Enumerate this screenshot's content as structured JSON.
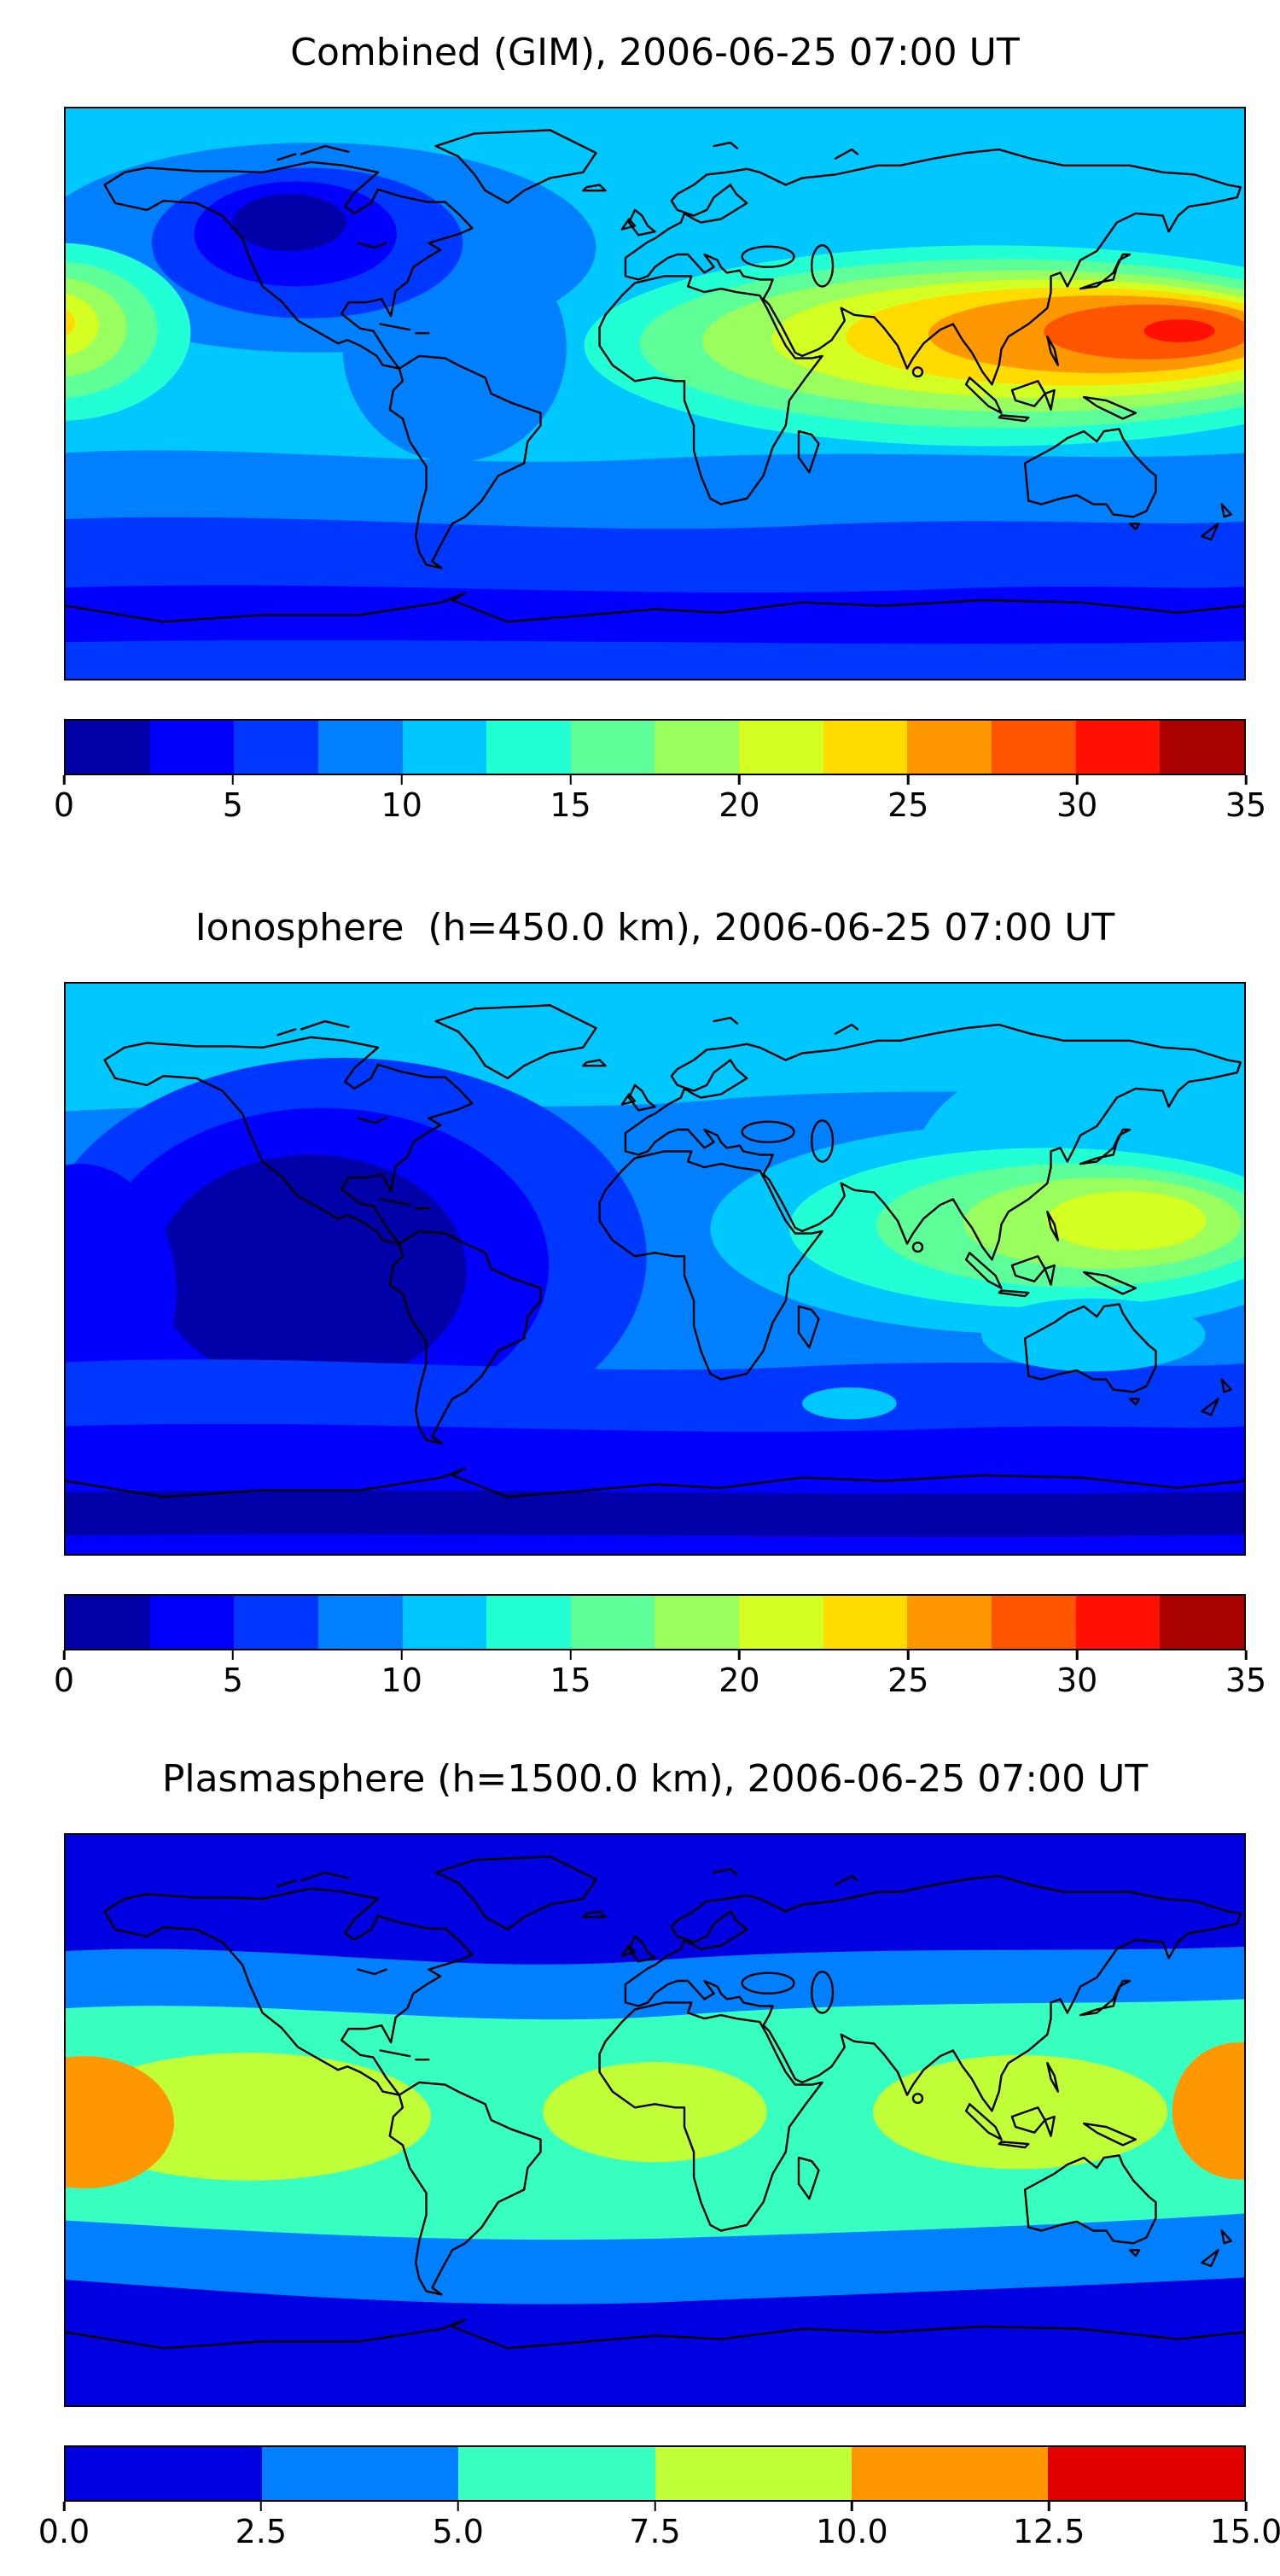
{
  "figure": {
    "background": "#ffffff"
  },
  "palettes": {
    "jet14": [
      "#0000A9",
      "#0000FC",
      "#0037FF",
      "#0080FF",
      "#00C8FF",
      "#23FFD4",
      "#5EFF99",
      "#99FF5E",
      "#D4FF23",
      "#FFDB00",
      "#FF9700",
      "#FF5400",
      "#FF1000",
      "#A90000"
    ],
    "jet6": [
      "#0000E0",
      "#0080FF",
      "#37FFC0",
      "#C0FF37",
      "#FF9700",
      "#E00000"
    ]
  },
  "panels": [
    {
      "title": "Combined (GIM), 2006-06-25 07:00 UT",
      "colorbar_ticks": [
        "0",
        "5",
        "10",
        "15",
        "20",
        "25",
        "30",
        "35"
      ]
    },
    {
      "title": "Ionosphere  (h=450.0 km), 2006-06-25 07:00 UT",
      "colorbar_ticks": [
        "0",
        "5",
        "10",
        "15",
        "20",
        "25",
        "30",
        "35"
      ]
    },
    {
      "title": "Plasmasphere (h=1500.0 km), 2006-06-25 07:00 UT",
      "colorbar_ticks": [
        "0.0",
        "2.5",
        "5.0",
        "7.5",
        "10.0",
        "12.5",
        "15.0"
      ]
    }
  ],
  "chart_data": [
    {
      "type": "heatmap",
      "variant": "filled_contour_world_map",
      "title": "Combined (GIM), 2006-06-25 07:00 UT",
      "projection": "equirectangular",
      "lon_range": [
        -180,
        180
      ],
      "lat_range": [
        -90,
        90
      ],
      "value_range": [
        0,
        35
      ],
      "contour_interval": 2.5,
      "colormap": "jet",
      "colorbar_ticks": [
        0,
        5,
        10,
        15,
        20,
        25,
        30,
        35
      ],
      "features": [
        {
          "label": "equatorial anomaly maximum over East Asia / West Pacific",
          "lon": 140,
          "lat": 21,
          "value": 32.5
        },
        {
          "label": "secondary crest at left map edge (central Pacific)",
          "lon": -180,
          "lat": 20,
          "value": 23
        },
        {
          "label": "broad enhanced band over Africa and South Asia",
          "lon": 80,
          "lat": 15,
          "value": 20
        },
        {
          "label": "nighttime minimum over North America",
          "lon": -112,
          "lat": 55,
          "value": 1.5
        },
        {
          "label": "southern high-latitude minimum band",
          "lat": -62,
          "value": 3
        }
      ]
    },
    {
      "type": "heatmap",
      "variant": "filled_contour_world_map",
      "title": "Ionosphere  (h=450.0 km), 2006-06-25 07:00 UT",
      "projection": "equirectangular",
      "lon_range": [
        -180,
        180
      ],
      "lat_range": [
        -90,
        90
      ],
      "value_range": [
        0,
        35
      ],
      "contour_interval": 2.5,
      "colormap": "jet",
      "colorbar_ticks": [
        0,
        5,
        10,
        15,
        20,
        25,
        30,
        35
      ],
      "features": [
        {
          "label": "maximum over South / Southeast Asia",
          "lon": 100,
          "lat": 15,
          "value": 20
        },
        {
          "label": "deep nighttime minimum over the Americas and East Pacific",
          "lon": -100,
          "lat": 0,
          "value": 1.5
        },
        {
          "label": "light-blue high-latitude band across Arctic",
          "lat": 75,
          "value": 11
        },
        {
          "label": "southern polar minimum",
          "lat": -70,
          "value": 1.5
        }
      ]
    },
    {
      "type": "heatmap",
      "variant": "filled_contour_world_map",
      "title": "Plasmasphere (h=1500.0 km), 2006-06-25 07:00 UT",
      "projection": "equirectangular",
      "lon_range": [
        -180,
        180
      ],
      "lat_range": [
        -90,
        90
      ],
      "value_range": [
        0,
        15
      ],
      "contour_interval": 2.5,
      "colormap": "jet",
      "colorbar_ticks": [
        0,
        2.5,
        5,
        7.5,
        10,
        12.5,
        15
      ],
      "features": [
        {
          "label": "orange equatorial maximum at left map edge",
          "lon": -178,
          "lat": 0,
          "value": 11
        },
        {
          "label": "orange equatorial maximum at right map edge",
          "lon": 178,
          "lat": 3,
          "value": 11
        },
        {
          "label": "yellow-green equatorial belt",
          "lat": 0,
          "value": 9
        },
        {
          "label": "latitudinal banding toward poles",
          "lat": 55,
          "value": 1.5
        }
      ]
    }
  ]
}
